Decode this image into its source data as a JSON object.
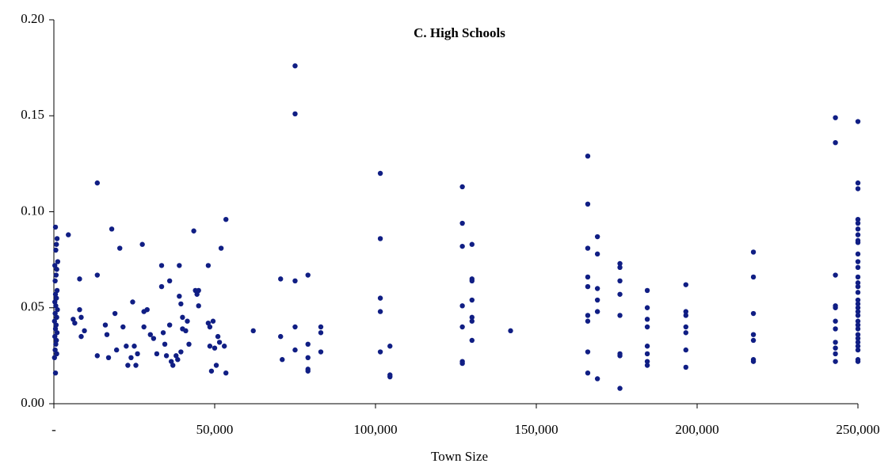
{
  "chart_data": {
    "type": "scatter",
    "title": "C. High Schools",
    "x_label": "Town Size",
    "color": "#101e84",
    "xlim": [
      0,
      250000
    ],
    "ylim": [
      0,
      0.2
    ],
    "xticks": [
      {
        "value": 0,
        "label": "-"
      },
      {
        "value": 50000,
        "label": "50,000"
      },
      {
        "value": 100000,
        "label": "100,000"
      },
      {
        "value": 150000,
        "label": "150,000"
      },
      {
        "value": 200000,
        "label": "200,000"
      },
      {
        "value": 250000,
        "label": "250,000"
      }
    ],
    "yticks": [
      {
        "value": 0,
        "label": "0.00"
      },
      {
        "value": 0.05,
        "label": "0.05"
      },
      {
        "value": 0.1,
        "label": "0.10"
      },
      {
        "value": 0.15,
        "label": "0.15"
      },
      {
        "value": 0.2,
        "label": "0.20"
      }
    ],
    "x": [
      500,
      1000,
      800,
      600,
      1200,
      300,
      900,
      700,
      400,
      1000,
      500,
      800,
      300,
      600,
      1100,
      400,
      900,
      200,
      700,
      500,
      1000,
      300,
      800,
      600,
      400,
      900,
      200,
      500,
      4500,
      6000,
      6500,
      8000,
      8000,
      8500,
      8500,
      9500,
      13500,
      13500,
      13500,
      16000,
      16500,
      17000,
      18000,
      19000,
      19500,
      20500,
      21500,
      22500,
      23000,
      24000,
      24500,
      25000,
      25500,
      26000,
      27500,
      28000,
      28000,
      29000,
      30000,
      31000,
      32000,
      33500,
      33500,
      34000,
      34500,
      35000,
      36000,
      36000,
      36500,
      37000,
      38000,
      38500,
      39000,
      39000,
      39500,
      40000,
      40000,
      41000,
      41500,
      42000,
      43500,
      44000,
      44500,
      45000,
      45000,
      39500,
      48000,
      48000,
      48500,
      48500,
      49000,
      49500,
      50000,
      50500,
      51000,
      51500,
      52000,
      53000,
      53500,
      53500,
      62000,
      70500,
      70500,
      71000,
      75000,
      75000,
      75000,
      75000,
      75000,
      79000,
      79000,
      79000,
      79000,
      79000,
      83000,
      83000,
      83000,
      101500,
      101500,
      101500,
      101500,
      101500,
      104500,
      104500,
      104500,
      127000,
      127000,
      127000,
      127000,
      127000,
      127000,
      127000,
      130000,
      130000,
      130000,
      130000,
      130000,
      130000,
      130000,
      142000,
      166000,
      166000,
      166000,
      166000,
      166000,
      166000,
      166000,
      166000,
      166000,
      169000,
      169000,
      169000,
      169000,
      169000,
      169000,
      176000,
      176000,
      176000,
      176000,
      176000,
      176000,
      176000,
      176000,
      184500,
      184500,
      184500,
      184500,
      184500,
      184500,
      184500,
      184500,
      196500,
      196500,
      196500,
      196500,
      196500,
      196500,
      196500,
      217500,
      217500,
      217500,
      217500,
      217500,
      217500,
      217500,
      243000,
      243000,
      243000,
      243000,
      243000,
      243000,
      243000,
      243000,
      243000,
      243000,
      243000,
      250000,
      250000,
      250000,
      250000,
      250000,
      250000,
      250000,
      250000,
      250000,
      250000,
      250000,
      250000,
      250000,
      250000,
      250000,
      250000,
      250000,
      250000,
      250000,
      250000,
      250000,
      250000,
      250000,
      250000,
      250000,
      250000,
      250000,
      250000,
      250000,
      250000,
      250000
    ],
    "values": [
      0.092,
      0.086,
      0.083,
      0.08,
      0.074,
      0.072,
      0.07,
      0.067,
      0.064,
      0.059,
      0.057,
      0.055,
      0.053,
      0.051,
      0.049,
      0.047,
      0.045,
      0.043,
      0.041,
      0.039,
      0.037,
      0.035,
      0.033,
      0.031,
      0.028,
      0.026,
      0.024,
      0.016,
      0.088,
      0.044,
      0.042,
      0.065,
      0.049,
      0.045,
      0.035,
      0.038,
      0.115,
      0.067,
      0.025,
      0.041,
      0.036,
      0.024,
      0.091,
      0.047,
      0.028,
      0.081,
      0.04,
      0.03,
      0.02,
      0.024,
      0.053,
      0.03,
      0.02,
      0.026,
      0.083,
      0.048,
      0.04,
      0.049,
      0.036,
      0.034,
      0.026,
      0.072,
      0.061,
      0.037,
      0.031,
      0.025,
      0.064,
      0.041,
      0.022,
      0.02,
      0.025,
      0.023,
      0.072,
      0.056,
      0.052,
      0.045,
      0.039,
      0.038,
      0.043,
      0.031,
      0.09,
      0.059,
      0.057,
      0.059,
      0.051,
      0.027,
      0.072,
      0.042,
      0.04,
      0.03,
      0.017,
      0.043,
      0.029,
      0.02,
      0.035,
      0.032,
      0.081,
      0.03,
      0.096,
      0.016,
      0.038,
      0.065,
      0.035,
      0.023,
      0.176,
      0.151,
      0.064,
      0.04,
      0.028,
      0.067,
      0.031,
      0.024,
      0.018,
      0.017,
      0.04,
      0.037,
      0.027,
      0.12,
      0.086,
      0.055,
      0.048,
      0.027,
      0.03,
      0.015,
      0.014,
      0.113,
      0.094,
      0.082,
      0.051,
      0.04,
      0.022,
      0.021,
      0.083,
      0.065,
      0.064,
      0.054,
      0.045,
      0.043,
      0.033,
      0.038,
      0.129,
      0.104,
      0.081,
      0.066,
      0.061,
      0.046,
      0.043,
      0.027,
      0.016,
      0.087,
      0.078,
      0.06,
      0.054,
      0.048,
      0.013,
      0.073,
      0.071,
      0.064,
      0.057,
      0.046,
      0.026,
      0.025,
      0.008,
      0.059,
      0.05,
      0.044,
      0.04,
      0.03,
      0.026,
      0.022,
      0.02,
      0.062,
      0.048,
      0.046,
      0.04,
      0.037,
      0.028,
      0.019,
      0.079,
      0.066,
      0.047,
      0.036,
      0.033,
      0.023,
      0.022,
      0.149,
      0.136,
      0.067,
      0.051,
      0.05,
      0.043,
      0.039,
      0.032,
      0.029,
      0.026,
      0.022,
      0.147,
      0.115,
      0.112,
      0.096,
      0.094,
      0.091,
      0.088,
      0.085,
      0.084,
      0.078,
      0.074,
      0.071,
      0.066,
      0.063,
      0.061,
      0.058,
      0.054,
      0.052,
      0.05,
      0.048,
      0.046,
      0.043,
      0.041,
      0.039,
      0.036,
      0.034,
      0.032,
      0.03,
      0.028,
      0.023,
      0.022
    ]
  }
}
